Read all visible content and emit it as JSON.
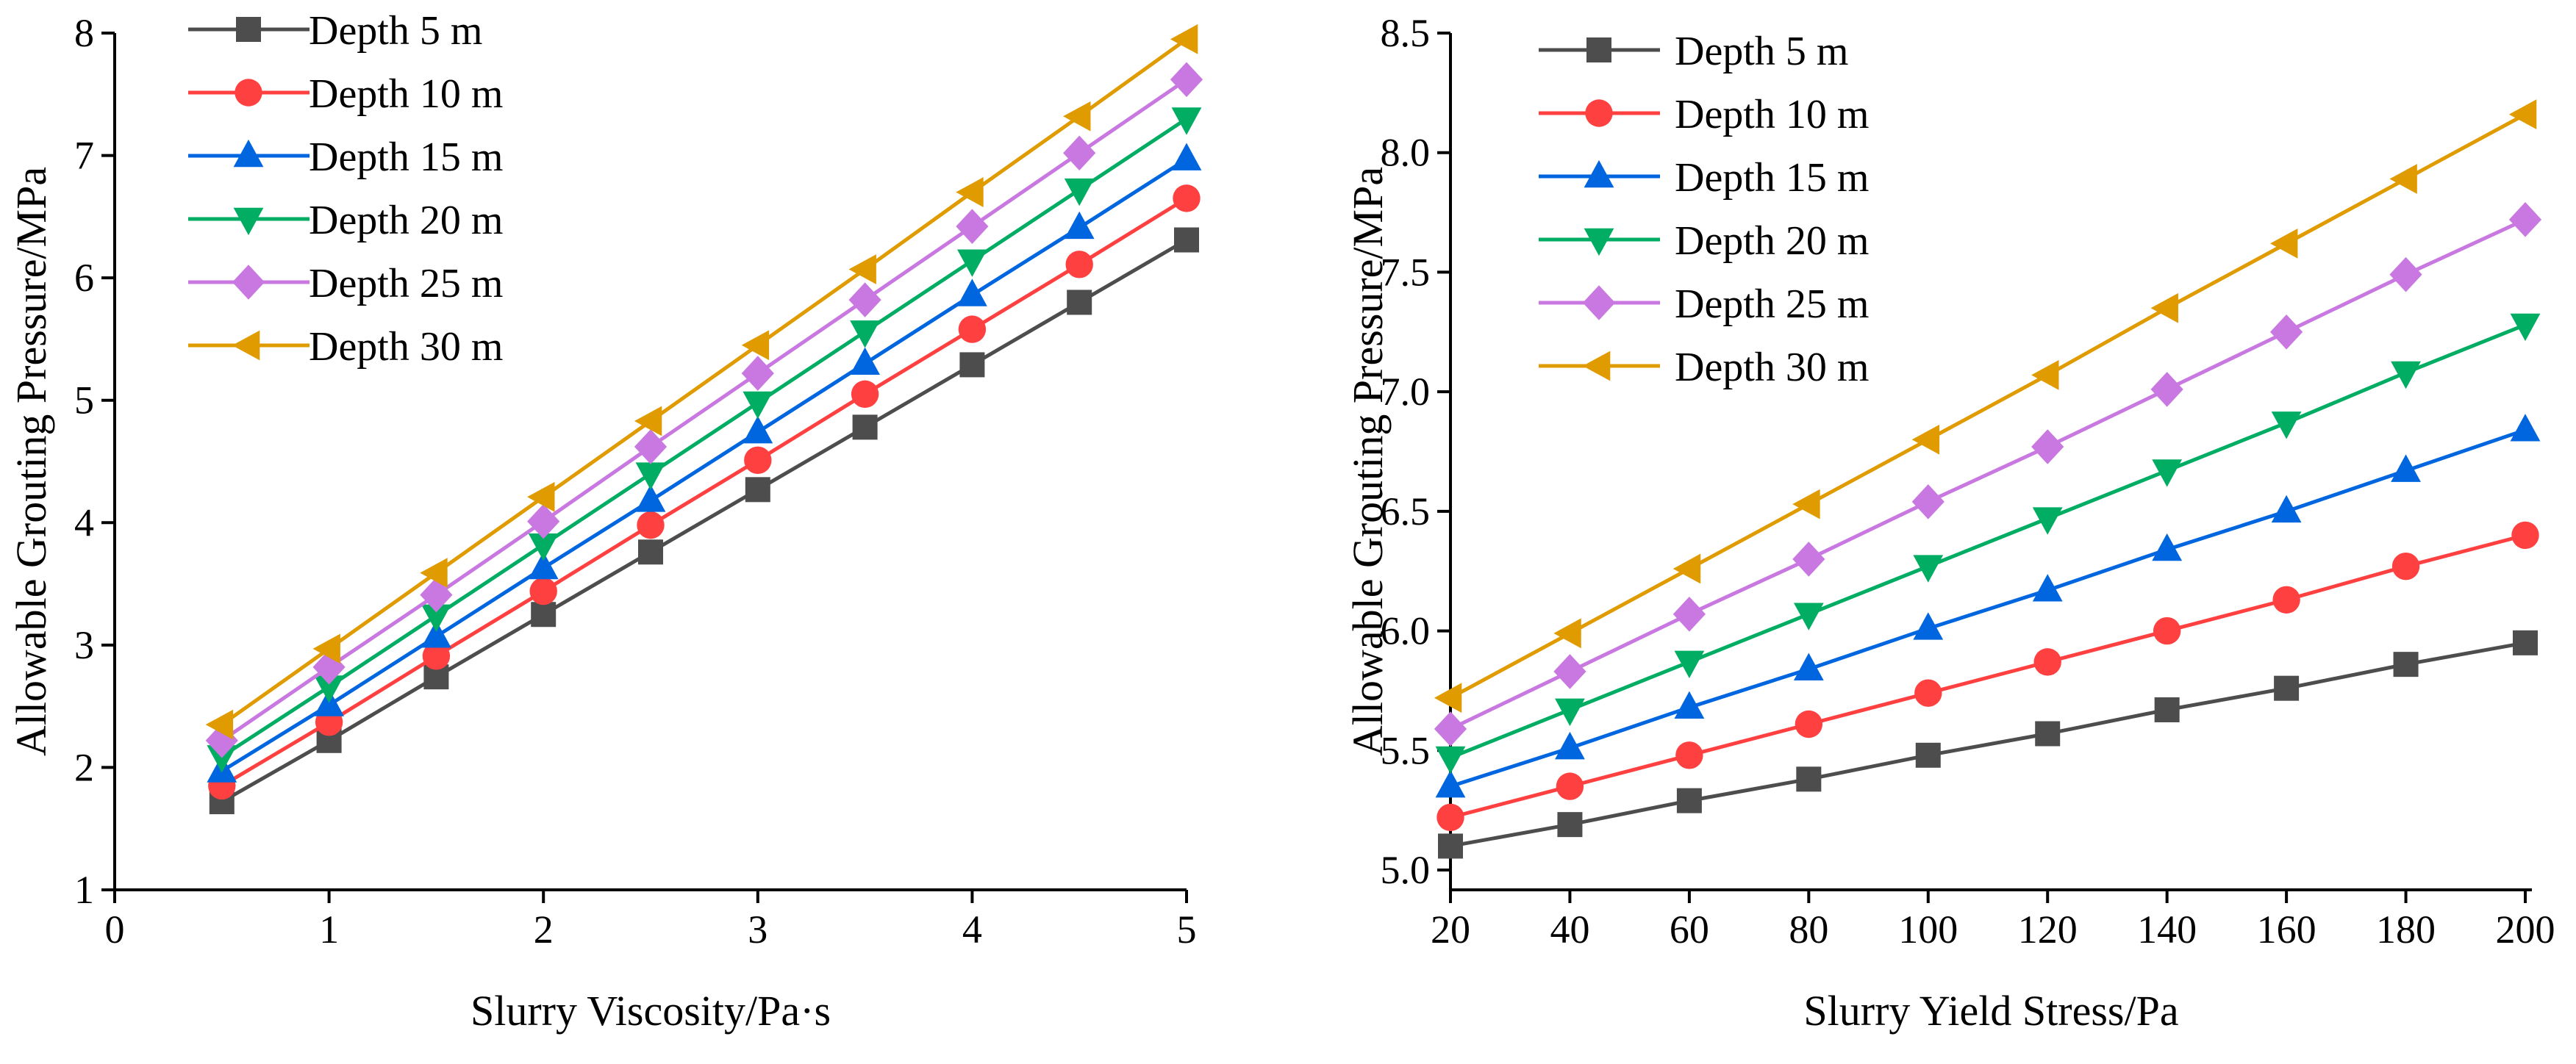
{
  "colors": [
    "#4d4d4d",
    "#ff4040",
    "#0066e0",
    "#00ad63",
    "#c878e0",
    "#e09b00"
  ],
  "markers": [
    "square",
    "circle",
    "triangle-up",
    "triangle-down",
    "diamond",
    "triangle-left"
  ],
  "chart_data": [
    {
      "type": "line",
      "xlabel": "Slurry Viscosity/Pa·s",
      "ylabel": "Allowable Grouting Pressure/MPa",
      "xlim": [
        0,
        5
      ],
      "ylim": [
        1,
        8
      ],
      "xticks": [
        "0",
        "1",
        "2",
        "3",
        "4",
        "5"
      ],
      "yticks": [
        "1",
        "2",
        "3",
        "4",
        "5",
        "6",
        "7",
        "8"
      ],
      "legend_position": "top-left",
      "x": [
        0.5,
        1,
        1.5,
        2,
        2.5,
        3,
        3.5,
        4,
        4.5,
        5
      ],
      "series": [
        {
          "name": "Depth 5 m",
          "values": [
            1.72,
            2.22,
            2.74,
            3.25,
            3.76,
            4.27,
            4.78,
            5.29,
            5.8,
            6.31
          ]
        },
        {
          "name": "Depth 10 m",
          "values": [
            1.85,
            2.37,
            2.91,
            3.44,
            3.98,
            4.51,
            5.05,
            5.58,
            6.11,
            6.65
          ]
        },
        {
          "name": "Depth 15 m",
          "values": [
            1.97,
            2.51,
            3.07,
            3.63,
            4.18,
            4.74,
            5.3,
            5.86,
            6.41,
            6.97
          ]
        },
        {
          "name": "Depth 20 m",
          "values": [
            2.09,
            2.66,
            3.24,
            3.82,
            4.4,
            4.98,
            5.56,
            6.14,
            6.72,
            7.3
          ]
        },
        {
          "name": "Depth 25 m",
          "values": [
            2.22,
            2.82,
            3.41,
            4.01,
            4.62,
            5.22,
            5.82,
            6.42,
            7.02,
            7.62
          ]
        },
        {
          "name": "Depth 30 m",
          "values": [
            2.35,
            2.97,
            3.59,
            4.21,
            4.83,
            5.45,
            6.07,
            6.7,
            7.32,
            7.95
          ]
        }
      ]
    },
    {
      "type": "line",
      "xlabel": "Slurry Yield Stress/Pa",
      "ylabel": "Allowable Grouting Pressure/MPa",
      "xlim": [
        20,
        200
      ],
      "ylim": [
        5.0,
        8.5
      ],
      "xticks": [
        "20",
        "40",
        "60",
        "80",
        "100",
        "120",
        "140",
        "160",
        "180",
        "200"
      ],
      "yticks": [
        "5.0",
        "5.5",
        "6.0",
        "6.5",
        "7.0",
        "7.5",
        "8.0",
        "8.5"
      ],
      "legend_position": "top-left",
      "x": [
        20,
        40,
        60,
        80,
        100,
        120,
        140,
        160,
        180,
        200
      ],
      "series": [
        {
          "name": "Depth 5 m",
          "values": [
            5.1,
            5.19,
            5.29,
            5.38,
            5.48,
            5.57,
            5.67,
            5.76,
            5.86,
            5.95
          ]
        },
        {
          "name": "Depth 10 m",
          "values": [
            5.22,
            5.35,
            5.48,
            5.61,
            5.74,
            5.87,
            6.0,
            6.13,
            6.27,
            6.4
          ]
        },
        {
          "name": "Depth 15 m",
          "values": [
            5.35,
            5.51,
            5.68,
            5.84,
            6.01,
            6.17,
            6.34,
            6.5,
            6.67,
            6.84
          ]
        },
        {
          "name": "Depth 20 m",
          "values": [
            5.47,
            5.67,
            5.87,
            6.07,
            6.27,
            6.47,
            6.67,
            6.87,
            7.08,
            7.28
          ]
        },
        {
          "name": "Depth 25 m",
          "values": [
            5.59,
            5.83,
            6.07,
            6.3,
            6.54,
            6.77,
            7.01,
            7.25,
            7.49,
            7.72
          ]
        },
        {
          "name": "Depth 30 m",
          "values": [
            5.72,
            5.99,
            6.26,
            6.53,
            6.8,
            7.07,
            7.35,
            7.62,
            7.89,
            8.16
          ]
        }
      ]
    }
  ]
}
